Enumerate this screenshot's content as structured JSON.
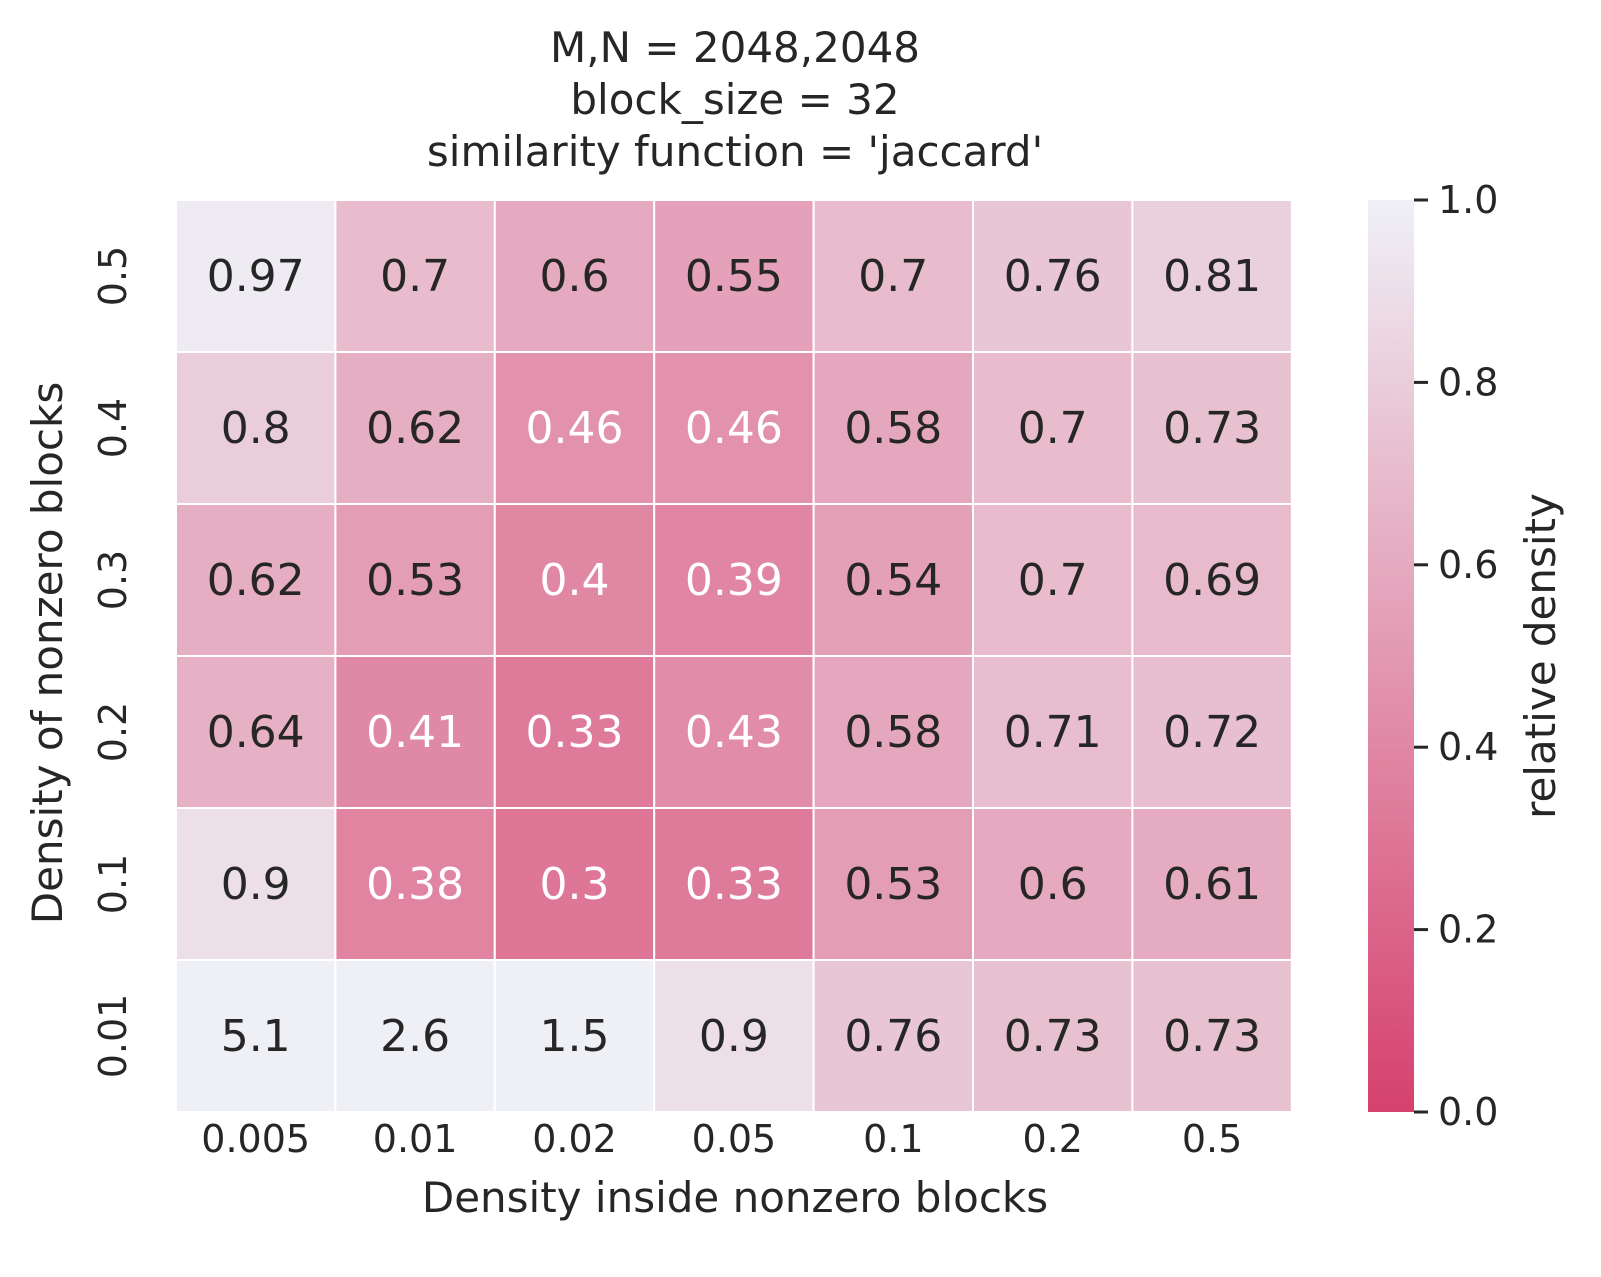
{
  "chart_data": {
    "type": "heatmap",
    "title_lines": [
      "M,N = 2048,2048",
      "block_size = 32",
      "similarity function = 'jaccard'"
    ],
    "xlabel": "Density inside nonzero blocks",
    "ylabel": "Density of nonzero blocks",
    "x_categories": [
      "0.005",
      "0.01",
      "0.02",
      "0.05",
      "0.1",
      "0.2",
      "0.5"
    ],
    "y_categories": [
      "0.5",
      "0.4",
      "0.3",
      "0.2",
      "0.1",
      "0.01"
    ],
    "values": [
      [
        0.97,
        0.7,
        0.6,
        0.55,
        0.7,
        0.76,
        0.81
      ],
      [
        0.8,
        0.62,
        0.46,
        0.46,
        0.58,
        0.7,
        0.73
      ],
      [
        0.62,
        0.53,
        0.4,
        0.39,
        0.54,
        0.7,
        0.69
      ],
      [
        0.64,
        0.41,
        0.33,
        0.43,
        0.58,
        0.71,
        0.72
      ],
      [
        0.9,
        0.38,
        0.3,
        0.33,
        0.53,
        0.6,
        0.61
      ],
      [
        5.1,
        2.6,
        1.5,
        0.9,
        0.76,
        0.73,
        0.73
      ]
    ],
    "colorbar": {
      "label": "relative density",
      "vmin": 0.0,
      "vmax": 1.0,
      "ticks": [
        "0.0",
        "0.2",
        "0.4",
        "0.6",
        "0.8",
        "1.0"
      ],
      "color_low": "#d6416e",
      "color_high": "#eff0f6"
    },
    "grid": true,
    "grid_color": "#ffffff",
    "text_color_dark": "#262626",
    "text_color_light": "#ffffff"
  }
}
